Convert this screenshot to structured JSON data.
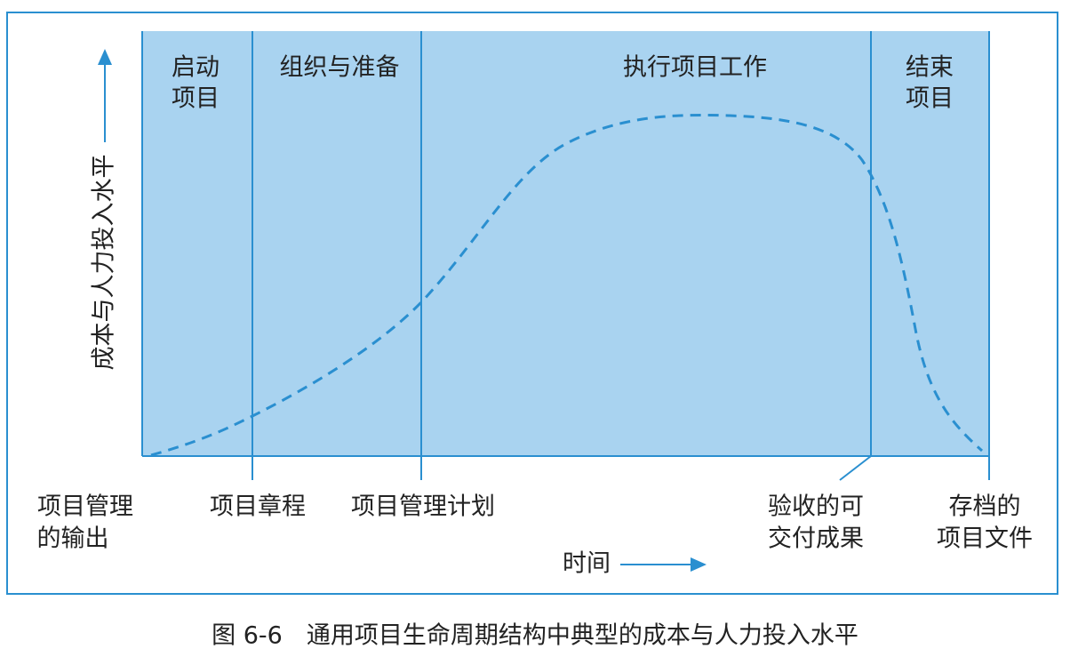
{
  "phases": [
    {
      "lines": [
        "启动",
        "项目"
      ]
    },
    {
      "lines": [
        "组织与准备"
      ]
    },
    {
      "lines": [
        "执行项目工作"
      ]
    },
    {
      "lines": [
        "结束",
        "项目"
      ]
    }
  ],
  "milestones": [
    {
      "lines": [
        "项目管理",
        "的输出"
      ]
    },
    {
      "lines": [
        "项目章程"
      ]
    },
    {
      "lines": [
        "项目管理计划"
      ]
    },
    {
      "lines": [
        "验收的可",
        "交付成果"
      ]
    },
    {
      "lines": [
        "存档的",
        "项目文件"
      ]
    }
  ],
  "y_axis_label": "成本与人力投入水平",
  "x_axis_label": "时间",
  "caption": "图 6-6　通用项目生命周期结构中典型的成本与人力投入水平"
}
